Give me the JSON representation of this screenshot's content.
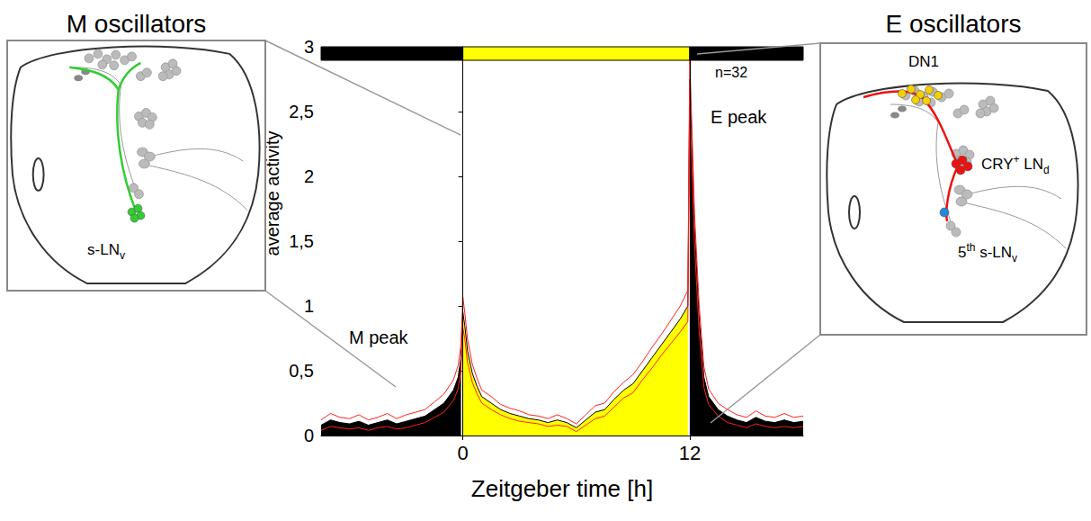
{
  "chart_data": {
    "type": "area",
    "xlabel": "Zeitgeber time [h]",
    "ylabel": "average activity",
    "annotations": [
      "M peak",
      "E peak",
      "n=32"
    ],
    "x": [
      -7.5,
      -7,
      -6.5,
      -6,
      -5.5,
      -5,
      -4.5,
      -4,
      -3.5,
      -3,
      -2.5,
      -2,
      -1.5,
      -1,
      -0.5,
      -0.25,
      -0.1,
      0,
      0.1,
      0.25,
      0.5,
      0.75,
      1,
      1.5,
      2,
      2.5,
      3,
      3.5,
      4,
      4.5,
      5,
      5.5,
      6,
      6.5,
      7,
      7.5,
      8,
      8.5,
      9,
      9.5,
      10,
      10.5,
      11,
      11.5,
      11.9,
      12,
      12.1,
      12.25,
      12.5,
      12.75,
      13,
      13.5,
      14,
      14.5,
      15,
      15.5,
      16,
      16.5,
      17,
      17.5,
      18
    ],
    "series": [
      {
        "color": "#000000",
        "values": [
          0.08,
          0.12,
          0.1,
          0.09,
          0.11,
          0.08,
          0.1,
          0.12,
          0.09,
          0.11,
          0.13,
          0.15,
          0.2,
          0.25,
          0.35,
          0.45,
          0.6,
          0.95,
          0.85,
          0.65,
          0.48,
          0.38,
          0.3,
          0.25,
          0.2,
          0.17,
          0.15,
          0.13,
          0.12,
          0.1,
          0.12,
          0.1,
          0.06,
          0.12,
          0.18,
          0.2,
          0.28,
          0.35,
          0.4,
          0.5,
          0.6,
          0.7,
          0.8,
          0.9,
          1.0,
          2.75,
          2.3,
          1.6,
          0.9,
          0.45,
          0.3,
          0.2,
          0.15,
          0.12,
          0.1,
          0.14,
          0.11,
          0.1,
          0.12,
          0.1,
          0.11
        ],
        "error": [
          0.04,
          0.05,
          0.04,
          0.04,
          0.05,
          0.04,
          0.04,
          0.05,
          0.04,
          0.05,
          0.05,
          0.05,
          0.06,
          0.07,
          0.08,
          0.09,
          0.1,
          0.12,
          0.1,
          0.09,
          0.07,
          0.06,
          0.05,
          0.05,
          0.04,
          0.04,
          0.04,
          0.03,
          0.03,
          0.03,
          0.04,
          0.03,
          0.03,
          0.04,
          0.05,
          0.05,
          0.06,
          0.06,
          0.07,
          0.07,
          0.08,
          0.08,
          0.09,
          0.1,
          0.12,
          0.15,
          0.15,
          0.12,
          0.1,
          0.08,
          0.06,
          0.05,
          0.05,
          0.04,
          0.04,
          0.05,
          0.04,
          0.04,
          0.05,
          0.04,
          0.04
        ]
      }
    ],
    "light_phases": [
      {
        "from": -7.5,
        "to": 0,
        "color": "#000000"
      },
      {
        "from": 0,
        "to": 12,
        "color": "#ffff00"
      },
      {
        "from": 12,
        "to": 18,
        "color": "#000000"
      }
    ],
    "xlim": [
      -7.5,
      18
    ],
    "xticks": [
      0,
      12
    ],
    "ylim": [
      0,
      3
    ],
    "yticks": [
      0,
      {
        "value": 0.5,
        "label": "0,5"
      },
      1,
      {
        "value": 1.5,
        "label": "1,5"
      },
      2,
      {
        "value": 2.5,
        "label": "2,5"
      },
      3
    ],
    "grid": false
  },
  "panels": [
    {
      "title": "M oscillators",
      "cells": [
        {
          "color": "#33cc33",
          "label": [
            {
              "text": "s-LN"
            },
            {
              "text": "v",
              "sub": true
            }
          ]
        }
      ]
    },
    {
      "title": "E oscillators",
      "cells": [
        {
          "color": "#f5d000",
          "label": [
            {
              "text": "DN1"
            }
          ]
        },
        {
          "color": "#ee1111",
          "label": [
            {
              "text": "CRY"
            },
            {
              "text": "+",
              "sup": true
            },
            {
              "text": " LN"
            },
            {
              "text": "d",
              "sub": true
            }
          ]
        },
        {
          "color": "#2288dd",
          "label": [
            {
              "text": "5"
            },
            {
              "text": "th",
              "sup": true
            },
            {
              "text": " s-LN"
            },
            {
              "text": "v",
              "sub": true
            }
          ]
        }
      ]
    }
  ]
}
